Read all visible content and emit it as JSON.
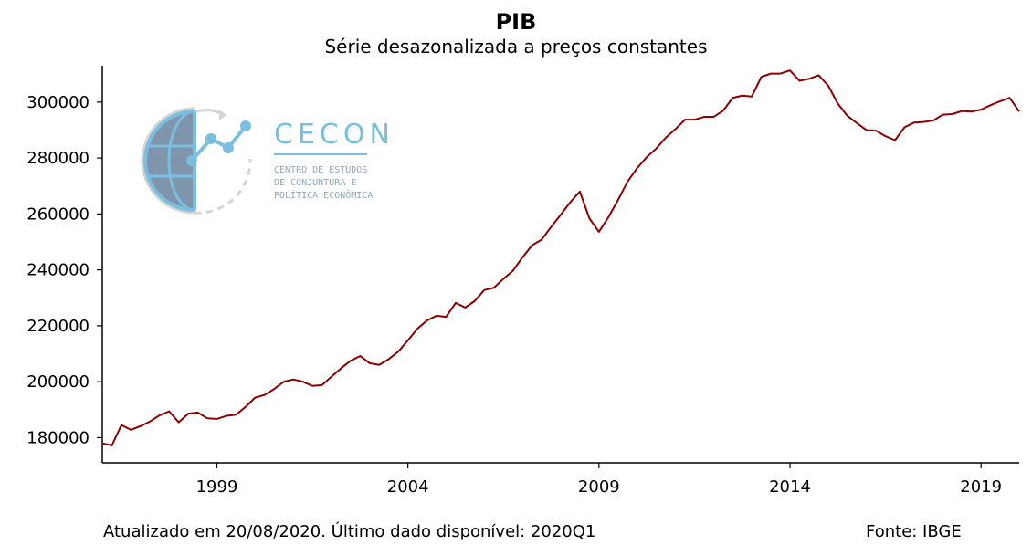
{
  "header": {
    "title": "PIB",
    "subtitle": "Série desazonalizada a preços constantes"
  },
  "footer": {
    "updated": "Atualizado em 20/08/2020. Último dado disponível: 2020Q1",
    "source": "Fonte: IBGE"
  },
  "logo": {
    "name": "CECON",
    "line1": "CENTRO DE ESTUDOS",
    "line2": "DE CONJUNTURA E",
    "line3": "POLÍTICA ECONÔMICA",
    "icon": "globe-chart-icon"
  },
  "colors": {
    "series": "#8b0000",
    "axis": "#000000",
    "logo_accent": "#7bbfe0"
  },
  "chart_data": {
    "type": "line",
    "title": "PIB",
    "subtitle": "Série desazonalizada a preços constantes",
    "xlabel": "",
    "ylabel": "",
    "x_start": "1996Q1",
    "x_end": "2020Q1",
    "xlim": [
      1996.0,
      2020.0
    ],
    "ylim": [
      171000,
      313000
    ],
    "xticks": [
      1999,
      2004,
      2009,
      2014,
      2019
    ],
    "yticks": [
      180000,
      200000,
      220000,
      240000,
      260000,
      280000,
      300000
    ],
    "grid": false,
    "legend": "none",
    "series": [
      {
        "values": [
          178000,
          177200,
          184500,
          182800,
          184100,
          185800,
          188000,
          189400,
          185500,
          188600,
          189000,
          186900,
          186700,
          187800,
          188200,
          191000,
          194300,
          195300,
          197400,
          200000,
          200800,
          200000,
          198500,
          198800,
          201800,
          204800,
          207500,
          209200,
          206600,
          206000,
          208100,
          210800,
          214800,
          219000,
          221900,
          223600,
          223200,
          228200,
          226500,
          228900,
          232800,
          233600,
          236800,
          239700,
          244500,
          248800,
          250800,
          255400,
          259700,
          264200,
          268000,
          258400,
          253600,
          258900,
          265000,
          271600,
          276400,
          280300,
          283400,
          287300,
          290300,
          293700,
          293700,
          294700,
          294700,
          296900,
          301500,
          302300,
          302000,
          309000,
          310200,
          310200,
          311300,
          307600,
          308300,
          309600,
          305900,
          299500,
          295100,
          292500,
          290000,
          289800,
          287800,
          286400,
          291000,
          292700,
          292900,
          293400,
          295500,
          295700,
          296800,
          296600,
          297300,
          298900,
          300300,
          301500,
          296600
        ]
      }
    ]
  }
}
